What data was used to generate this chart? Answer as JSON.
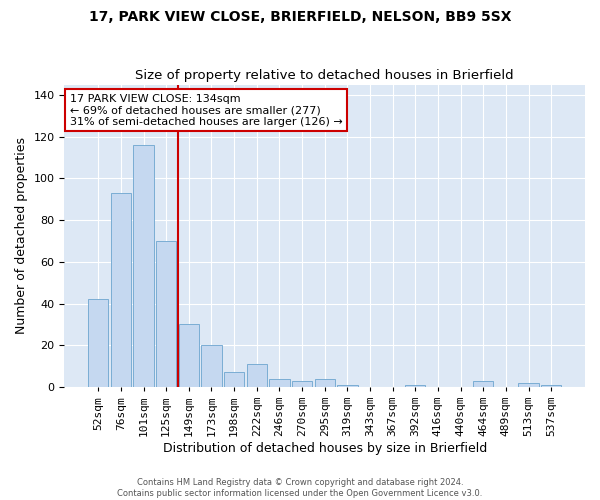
{
  "title": "17, PARK VIEW CLOSE, BRIERFIELD, NELSON, BB9 5SX",
  "subtitle": "Size of property relative to detached houses in Brierfield",
  "xlabel": "Distribution of detached houses by size in Brierfield",
  "ylabel": "Number of detached properties",
  "bar_labels": [
    "52sqm",
    "76sqm",
    "101sqm",
    "125sqm",
    "149sqm",
    "173sqm",
    "198sqm",
    "222sqm",
    "246sqm",
    "270sqm",
    "295sqm",
    "319sqm",
    "343sqm",
    "367sqm",
    "392sqm",
    "416sqm",
    "440sqm",
    "464sqm",
    "489sqm",
    "513sqm",
    "537sqm"
  ],
  "bar_values": [
    42,
    93,
    116,
    70,
    30,
    20,
    7,
    11,
    4,
    3,
    4,
    1,
    0,
    0,
    1,
    0,
    0,
    3,
    0,
    2,
    1
  ],
  "bar_color": "#c5d8f0",
  "bar_edge_color": "#7aadd4",
  "vline_x": 3.5,
  "vline_color": "#cc0000",
  "annotation_text": "17 PARK VIEW CLOSE: 134sqm\n← 69% of detached houses are smaller (277)\n31% of semi-detached houses are larger (126) →",
  "annotation_box_color": "#ffffff",
  "annotation_box_edge": "#cc0000",
  "ylim": [
    0,
    145
  ],
  "yticks": [
    0,
    20,
    40,
    60,
    80,
    100,
    120,
    140
  ],
  "background_color": "#dde8f5",
  "fig_background_color": "#ffffff",
  "grid_color": "#ffffff",
  "footnote": "Contains HM Land Registry data © Crown copyright and database right 2024.\nContains public sector information licensed under the Open Government Licence v3.0.",
  "title_fontsize": 10,
  "xlabel_fontsize": 9,
  "ylabel_fontsize": 9,
  "tick_fontsize": 8,
  "annotation_fontsize": 8
}
